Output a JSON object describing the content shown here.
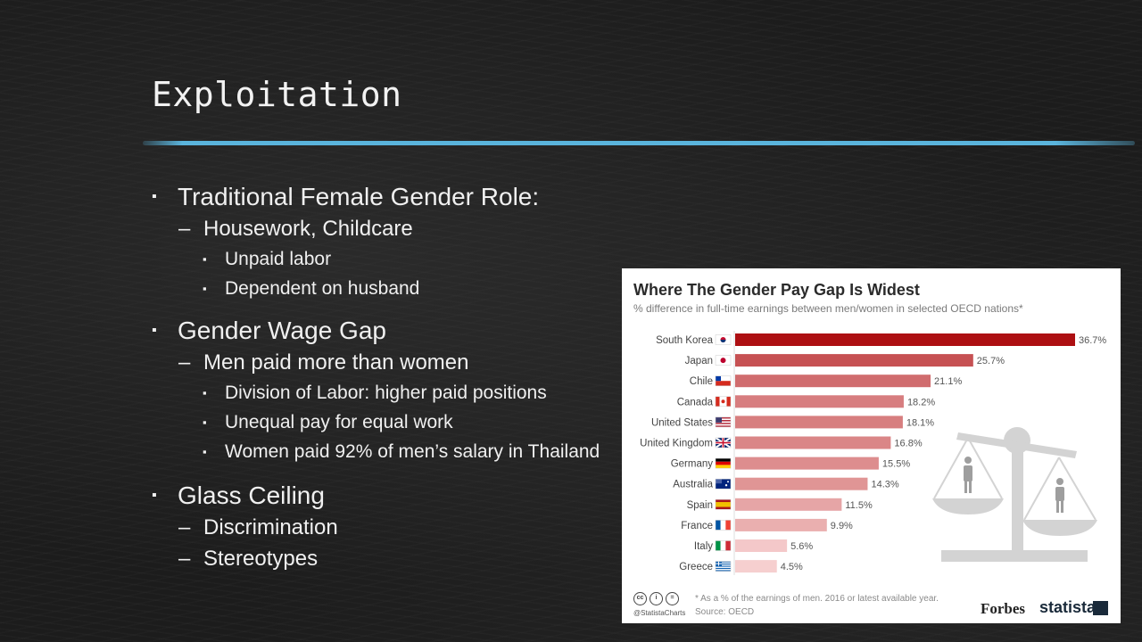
{
  "slide": {
    "title": "Exploitation",
    "accent_color": "#5ab4dc",
    "bullets": [
      {
        "level": 1,
        "text": "Traditional Female Gender Role:"
      },
      {
        "level": 2,
        "text": "Housework, Childcare"
      },
      {
        "level": 3,
        "text": "Unpaid labor"
      },
      {
        "level": 3,
        "text": "Dependent on husband"
      },
      {
        "level": 1,
        "text": "Gender Wage Gap"
      },
      {
        "level": 2,
        "text": "Men paid more than women"
      },
      {
        "level": 3,
        "text": "Division of Labor: higher paid positions"
      },
      {
        "level": 3,
        "text": "Unequal pay for equal work"
      },
      {
        "level": 3,
        "text": "Women paid 92% of men’s salary in Thailand"
      },
      {
        "level": 1,
        "text": "Glass Ceiling"
      },
      {
        "level": 2,
        "text": "Discrimination"
      },
      {
        "level": 2,
        "text": "Stereotypes"
      }
    ]
  },
  "chart_data": {
    "type": "bar",
    "orientation": "horizontal",
    "title": "Where The Gender Pay Gap Is Widest",
    "subtitle": "% difference in full-time earnings between men/women in selected OECD nations*",
    "categories": [
      "South Korea",
      "Japan",
      "Chile",
      "Canada",
      "United States",
      "United Kingdom",
      "Germany",
      "Australia",
      "Spain",
      "France",
      "Italy",
      "Greece"
    ],
    "values": [
      36.7,
      25.7,
      21.1,
      18.2,
      18.1,
      16.8,
      15.5,
      14.3,
      11.5,
      9.9,
      5.6,
      4.5
    ],
    "value_labels": [
      "36.7%",
      "25.7%",
      "21.1%",
      "18.2%",
      "18.1%",
      "16.8%",
      "15.5%",
      "14.3%",
      "11.5%",
      "9.9%",
      "5.6%",
      "4.5%"
    ],
    "bar_color_max": "#ad0f12",
    "bar_color_min": "#f6cfcf",
    "flag_icons": [
      "south-korea-flag-icon",
      "japan-flag-icon",
      "chile-flag-icon",
      "canada-flag-icon",
      "united-states-flag-icon",
      "united-kingdom-flag-icon",
      "germany-flag-icon",
      "australia-flag-icon",
      "spain-flag-icon",
      "france-flag-icon",
      "italy-flag-icon",
      "greece-flag-icon"
    ],
    "grid": false,
    "footnote": "* As a % of the earnings of men. 2016 or latest available year.",
    "source": "Source: OECD",
    "handle": "@StatistaCharts",
    "logos": {
      "forbes": "Forbes",
      "statista": "statista"
    }
  }
}
